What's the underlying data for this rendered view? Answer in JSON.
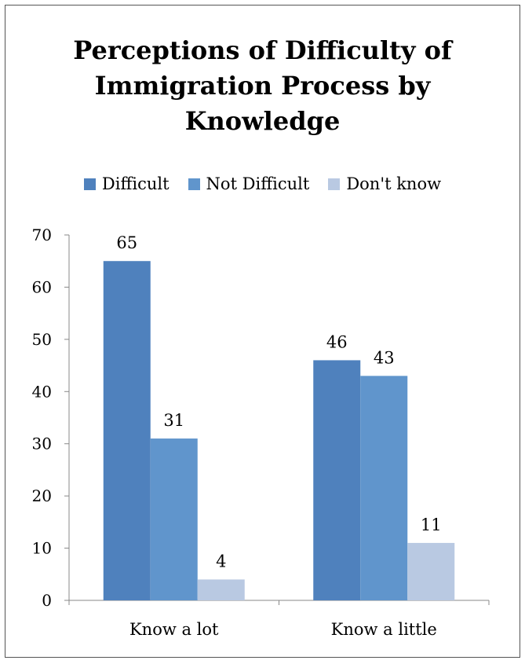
{
  "chart_data": {
    "type": "bar",
    "title": "Perceptions of Difficulty of Immigration Process by Knowledge",
    "title_lines": [
      "Perceptions of Difficulty of",
      "Immigration Process by",
      "Knowledge"
    ],
    "categories": [
      "Know a lot",
      "Know a little"
    ],
    "series": [
      {
        "name": "Difficult",
        "values": [
          65,
          46
        ],
        "color": "#4F81BD"
      },
      {
        "name": "Not Difficult",
        "values": [
          31,
          43
        ],
        "color": "#6095CC"
      },
      {
        "name": "Don't know",
        "values": [
          4,
          11
        ],
        "color": "#B9C9E2"
      }
    ],
    "yticks": [
      0,
      10,
      20,
      30,
      40,
      50,
      60,
      70
    ],
    "ylim": [
      0,
      70
    ],
    "legend_position": "top",
    "grid": false
  }
}
